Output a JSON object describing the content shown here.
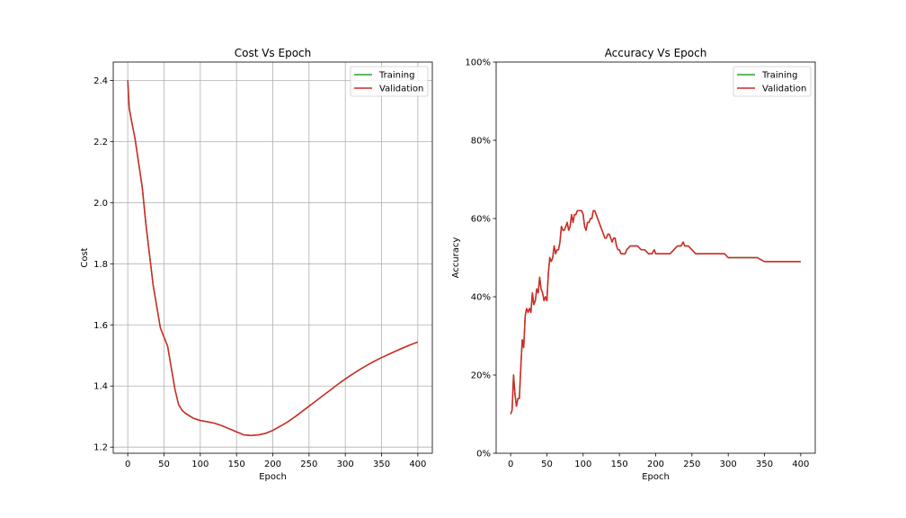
{
  "colors": {
    "training": "#2ca02c",
    "validation": "#d62728",
    "grid": "#b0b0b0",
    "frame": "#000000"
  },
  "chart_data": [
    {
      "type": "line",
      "title": "Cost Vs Epoch",
      "xlabel": "Epoch",
      "ylabel": "Cost",
      "xlim": [
        -20,
        420
      ],
      "ylim": [
        1.18,
        2.46
      ],
      "xticks": [
        0,
        50,
        100,
        150,
        200,
        250,
        300,
        350,
        400
      ],
      "xtick_labels": [
        "0",
        "50",
        "100",
        "150",
        "200",
        "250",
        "300",
        "350",
        "400"
      ],
      "yticks": [
        1.2,
        1.4,
        1.6,
        1.8,
        2.0,
        2.2,
        2.4
      ],
      "ytick_labels": [
        "1.2",
        "1.4",
        "1.6",
        "1.8",
        "2.0",
        "2.2",
        "2.4"
      ],
      "grid": true,
      "legend": "upper right",
      "series": [
        {
          "name": "Training",
          "color_key": "training",
          "x": [
            0,
            2,
            5,
            10,
            15,
            20,
            25,
            30,
            35,
            40,
            45,
            50,
            55,
            60,
            65,
            70,
            75,
            80,
            90,
            100,
            110,
            120,
            130,
            140,
            150,
            160,
            170,
            180,
            190,
            200,
            210,
            220,
            230,
            240,
            250,
            260,
            270,
            280,
            290,
            300,
            310,
            320,
            330,
            340,
            350,
            360,
            370,
            380,
            390,
            400
          ],
          "y": [
            2.4,
            2.31,
            2.27,
            2.21,
            2.13,
            2.05,
            1.93,
            1.83,
            1.73,
            1.66,
            1.59,
            1.56,
            1.53,
            1.46,
            1.39,
            1.34,
            1.32,
            1.31,
            1.295,
            1.287,
            1.283,
            1.278,
            1.27,
            1.26,
            1.25,
            1.24,
            1.238,
            1.24,
            1.245,
            1.255,
            1.268,
            1.282,
            1.298,
            1.316,
            1.334,
            1.352,
            1.37,
            1.388,
            1.406,
            1.423,
            1.439,
            1.454,
            1.468,
            1.481,
            1.493,
            1.504,
            1.515,
            1.525,
            1.535,
            1.544
          ]
        },
        {
          "name": "Validation",
          "color_key": "validation",
          "x": [
            0,
            2,
            5,
            10,
            15,
            20,
            25,
            30,
            35,
            40,
            45,
            50,
            55,
            60,
            65,
            70,
            75,
            80,
            90,
            100,
            110,
            120,
            130,
            140,
            150,
            160,
            170,
            180,
            190,
            200,
            210,
            220,
            230,
            240,
            250,
            260,
            270,
            280,
            290,
            300,
            310,
            320,
            330,
            340,
            350,
            360,
            370,
            380,
            390,
            400
          ],
          "y": [
            2.4,
            2.31,
            2.27,
            2.21,
            2.13,
            2.05,
            1.93,
            1.83,
            1.73,
            1.66,
            1.59,
            1.56,
            1.53,
            1.46,
            1.39,
            1.34,
            1.32,
            1.31,
            1.295,
            1.287,
            1.283,
            1.278,
            1.27,
            1.26,
            1.25,
            1.24,
            1.238,
            1.24,
            1.245,
            1.255,
            1.268,
            1.282,
            1.298,
            1.316,
            1.334,
            1.352,
            1.37,
            1.388,
            1.406,
            1.423,
            1.439,
            1.454,
            1.468,
            1.481,
            1.493,
            1.504,
            1.515,
            1.525,
            1.535,
            1.544
          ]
        }
      ]
    },
    {
      "type": "line",
      "title": "Accuracy Vs Epoch",
      "xlabel": "Epoch",
      "ylabel": "Accuracy",
      "xlim": [
        -20,
        420
      ],
      "ylim": [
        0,
        1.0
      ],
      "xticks": [
        0,
        50,
        100,
        150,
        200,
        250,
        300,
        350,
        400
      ],
      "xtick_labels": [
        "0",
        "50",
        "100",
        "150",
        "200",
        "250",
        "300",
        "350",
        "400"
      ],
      "yticks": [
        0,
        0.2,
        0.4,
        0.6,
        0.8,
        1.0
      ],
      "ytick_labels": [
        "0%",
        "20%",
        "40%",
        "60%",
        "80%",
        "100%"
      ],
      "grid": false,
      "legend": "upper right",
      "series": [
        {
          "name": "Training",
          "color_key": "training",
          "x": [
            0,
            2,
            4,
            6,
            8,
            10,
            12,
            14,
            16,
            18,
            20,
            22,
            24,
            26,
            28,
            30,
            32,
            34,
            36,
            38,
            40,
            42,
            44,
            46,
            48,
            50,
            52,
            54,
            56,
            58,
            60,
            62,
            64,
            66,
            68,
            70,
            72,
            74,
            76,
            78,
            80,
            82,
            84,
            86,
            88,
            90,
            92,
            94,
            96,
            98,
            100,
            102,
            104,
            106,
            108,
            110,
            112,
            114,
            116,
            118,
            120,
            122,
            124,
            126,
            128,
            130,
            132,
            134,
            136,
            138,
            140,
            142,
            144,
            146,
            148,
            150,
            152,
            154,
            156,
            158,
            160,
            165,
            170,
            175,
            180,
            185,
            190,
            195,
            198,
            200,
            202,
            210,
            220,
            225,
            230,
            235,
            238,
            240,
            245,
            250,
            255,
            260,
            270,
            280,
            290,
            295,
            300,
            310,
            320,
            330,
            340,
            350,
            360,
            370,
            380,
            390,
            400
          ],
          "y": [
            0.1,
            0.11,
            0.2,
            0.15,
            0.12,
            0.14,
            0.14,
            0.22,
            0.29,
            0.27,
            0.35,
            0.37,
            0.36,
            0.37,
            0.36,
            0.41,
            0.38,
            0.39,
            0.42,
            0.41,
            0.45,
            0.42,
            0.41,
            0.39,
            0.4,
            0.39,
            0.46,
            0.5,
            0.49,
            0.5,
            0.53,
            0.51,
            0.52,
            0.52,
            0.54,
            0.58,
            0.57,
            0.57,
            0.58,
            0.59,
            0.57,
            0.58,
            0.61,
            0.59,
            0.61,
            0.61,
            0.62,
            0.62,
            0.62,
            0.62,
            0.61,
            0.58,
            0.57,
            0.59,
            0.59,
            0.6,
            0.6,
            0.62,
            0.62,
            0.61,
            0.6,
            0.59,
            0.58,
            0.57,
            0.56,
            0.55,
            0.55,
            0.56,
            0.56,
            0.55,
            0.54,
            0.55,
            0.55,
            0.53,
            0.52,
            0.52,
            0.51,
            0.51,
            0.51,
            0.51,
            0.52,
            0.53,
            0.53,
            0.53,
            0.52,
            0.52,
            0.51,
            0.51,
            0.52,
            0.51,
            0.51,
            0.51,
            0.51,
            0.52,
            0.53,
            0.53,
            0.54,
            0.53,
            0.53,
            0.52,
            0.51,
            0.51,
            0.51,
            0.51,
            0.51,
            0.51,
            0.5,
            0.5,
            0.5,
            0.5,
            0.5,
            0.49,
            0.49,
            0.49,
            0.49,
            0.49,
            0.49
          ]
        },
        {
          "name": "Validation",
          "color_key": "validation",
          "x": [
            0,
            2,
            4,
            6,
            8,
            10,
            12,
            14,
            16,
            18,
            20,
            22,
            24,
            26,
            28,
            30,
            32,
            34,
            36,
            38,
            40,
            42,
            44,
            46,
            48,
            50,
            52,
            54,
            56,
            58,
            60,
            62,
            64,
            66,
            68,
            70,
            72,
            74,
            76,
            78,
            80,
            82,
            84,
            86,
            88,
            90,
            92,
            94,
            96,
            98,
            100,
            102,
            104,
            106,
            108,
            110,
            112,
            114,
            116,
            118,
            120,
            122,
            124,
            126,
            128,
            130,
            132,
            134,
            136,
            138,
            140,
            142,
            144,
            146,
            148,
            150,
            152,
            154,
            156,
            158,
            160,
            165,
            170,
            175,
            180,
            185,
            190,
            195,
            198,
            200,
            202,
            210,
            220,
            225,
            230,
            235,
            238,
            240,
            245,
            250,
            255,
            260,
            270,
            280,
            290,
            295,
            300,
            310,
            320,
            330,
            340,
            350,
            360,
            370,
            380,
            390,
            400
          ],
          "y": [
            0.1,
            0.11,
            0.2,
            0.15,
            0.12,
            0.14,
            0.14,
            0.22,
            0.29,
            0.27,
            0.35,
            0.37,
            0.36,
            0.37,
            0.36,
            0.41,
            0.38,
            0.39,
            0.42,
            0.41,
            0.45,
            0.42,
            0.41,
            0.39,
            0.4,
            0.39,
            0.46,
            0.5,
            0.49,
            0.5,
            0.53,
            0.51,
            0.52,
            0.52,
            0.54,
            0.58,
            0.57,
            0.57,
            0.58,
            0.59,
            0.57,
            0.58,
            0.61,
            0.59,
            0.61,
            0.61,
            0.62,
            0.62,
            0.62,
            0.62,
            0.61,
            0.58,
            0.57,
            0.59,
            0.59,
            0.6,
            0.6,
            0.62,
            0.62,
            0.61,
            0.6,
            0.59,
            0.58,
            0.57,
            0.56,
            0.55,
            0.55,
            0.56,
            0.56,
            0.55,
            0.54,
            0.55,
            0.55,
            0.53,
            0.52,
            0.52,
            0.51,
            0.51,
            0.51,
            0.51,
            0.52,
            0.53,
            0.53,
            0.53,
            0.52,
            0.52,
            0.51,
            0.51,
            0.52,
            0.51,
            0.51,
            0.51,
            0.51,
            0.52,
            0.53,
            0.53,
            0.54,
            0.53,
            0.53,
            0.52,
            0.51,
            0.51,
            0.51,
            0.51,
            0.51,
            0.51,
            0.5,
            0.5,
            0.5,
            0.5,
            0.5,
            0.49,
            0.49,
            0.49,
            0.49,
            0.49,
            0.49
          ]
        }
      ]
    }
  ]
}
